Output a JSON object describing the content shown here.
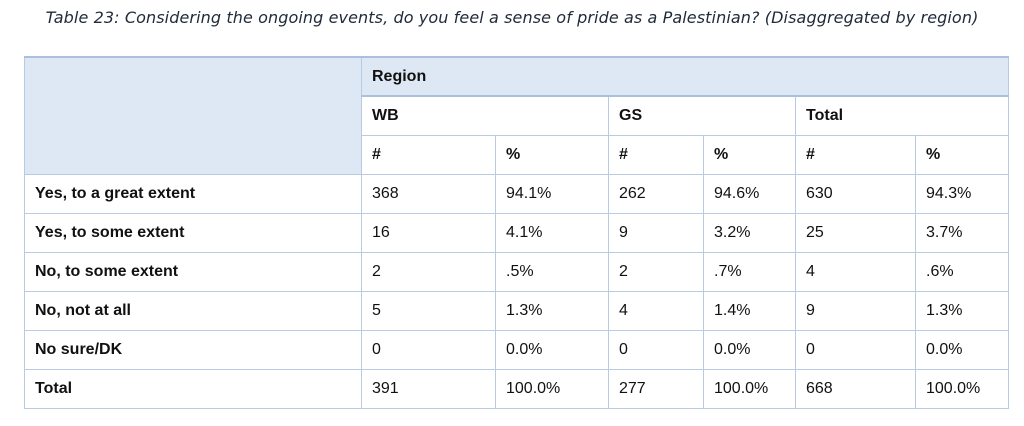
{
  "caption": "Table 23: Considering the ongoing events, do you feel a sense of pride as a Palestinian? (Disaggregated by region)",
  "header": {
    "region_label": "Region",
    "groups": [
      "WB",
      "GS",
      "Total"
    ],
    "subcolumns": [
      "#",
      "%",
      "#",
      "%",
      "#",
      "%"
    ]
  },
  "rows": [
    {
      "label": "Yes, to a great extent",
      "values": [
        "368",
        "94.1%",
        "262",
        "94.6%",
        "630",
        "94.3%"
      ]
    },
    {
      "label": "Yes, to some extent",
      "values": [
        "16",
        "4.1%",
        "9",
        "3.2%",
        "25",
        "3.7%"
      ]
    },
    {
      "label": "No, to some extent",
      "values": [
        "2",
        ".5%",
        "2",
        ".7%",
        "4",
        ".6%"
      ]
    },
    {
      "label": "No, not at all",
      "values": [
        "5",
        "1.3%",
        "4",
        "1.4%",
        "9",
        "1.3%"
      ]
    },
    {
      "label": "No sure/DK",
      "values": [
        "0",
        "0.0%",
        "0",
        "0.0%",
        "0",
        "0.0%"
      ]
    },
    {
      "label": "Total",
      "values": [
        "391",
        "100.0%",
        "277",
        "100.0%",
        "668",
        "100.0%"
      ]
    }
  ],
  "colors": {
    "header_background": "#dde8f4",
    "border": "#b8cbe0",
    "caption_text": "#1f2a3a"
  }
}
